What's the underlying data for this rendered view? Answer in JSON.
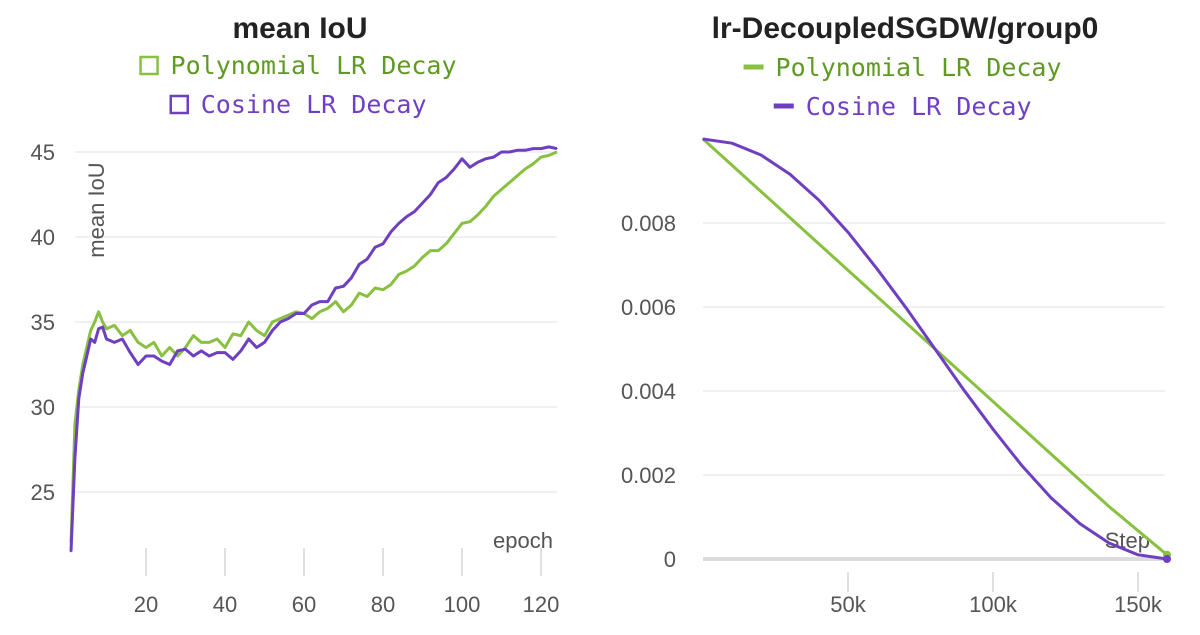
{
  "colors": {
    "polynomial": "#88c040",
    "cosine": "#6e3fc0",
    "polynomial_text": "#5f9a22",
    "cosine_text": "#7040c4"
  },
  "chart_data": [
    {
      "type": "line",
      "title": "mean IoU",
      "xlabel": "epoch",
      "ylabel": "mean IoU",
      "xlim": [
        0,
        125
      ],
      "ylim": [
        21.5,
        45.5
      ],
      "xticks": [
        "20",
        "40",
        "60",
        "80",
        "100",
        "120"
      ],
      "yticks": [
        "25",
        "30",
        "35",
        "40",
        "45"
      ],
      "grid": true,
      "legend": "top-center",
      "legend_marker": "square-outline",
      "series": [
        {
          "name": "Polynomial LR Decay",
          "x": [
            1,
            2,
            3,
            4,
            5,
            6,
            7,
            8,
            9,
            10,
            12,
            14,
            16,
            18,
            20,
            22,
            24,
            26,
            28,
            30,
            32,
            34,
            36,
            38,
            40,
            42,
            44,
            46,
            48,
            50,
            52,
            54,
            56,
            58,
            60,
            62,
            64,
            66,
            68,
            70,
            72,
            74,
            76,
            78,
            80,
            82,
            84,
            86,
            88,
            90,
            92,
            94,
            96,
            98,
            100,
            102,
            104,
            106,
            108,
            110,
            112,
            114,
            116,
            118,
            120,
            122,
            124
          ],
          "y": [
            22,
            29,
            31,
            32.5,
            33.5,
            34.5,
            35,
            35.6,
            35,
            34.6,
            34.8,
            34.2,
            34.5,
            33.8,
            33.5,
            33.8,
            33,
            33.5,
            33,
            33.5,
            34.2,
            33.8,
            33.8,
            34,
            33.5,
            34.3,
            34.2,
            35,
            34.5,
            34.2,
            35,
            35.2,
            35.4,
            35.6,
            35.5,
            35.2,
            35.6,
            35.8,
            36.2,
            35.6,
            36,
            36.7,
            36.5,
            37,
            36.9,
            37.2,
            37.8,
            38,
            38.3,
            38.8,
            39.2,
            39.2,
            39.6,
            40.2,
            40.8,
            40.9,
            41.3,
            41.8,
            42.4,
            42.8,
            43.2,
            43.6,
            44,
            44.3,
            44.7,
            44.8,
            45
          ]
        },
        {
          "name": "Cosine LR Decay",
          "x": [
            1,
            2,
            3,
            4,
            5,
            6,
            7,
            8,
            9,
            10,
            12,
            14,
            16,
            18,
            20,
            22,
            24,
            26,
            28,
            30,
            32,
            34,
            36,
            38,
            40,
            42,
            44,
            46,
            48,
            50,
            52,
            54,
            56,
            58,
            60,
            62,
            64,
            66,
            68,
            70,
            72,
            74,
            76,
            78,
            80,
            82,
            84,
            86,
            88,
            90,
            92,
            94,
            96,
            98,
            100,
            102,
            104,
            106,
            108,
            110,
            112,
            114,
            116,
            118,
            120,
            122,
            124
          ],
          "y": [
            21.5,
            27,
            30.5,
            32,
            33,
            34,
            33.8,
            34.6,
            34.7,
            34,
            33.8,
            34,
            33.2,
            32.5,
            33,
            33,
            32.7,
            32.5,
            33.3,
            33.4,
            33,
            33.3,
            33,
            33.2,
            33.2,
            32.8,
            33.3,
            34,
            33.5,
            33.8,
            34.5,
            35,
            35.2,
            35.5,
            35.5,
            36,
            36.2,
            36.2,
            37,
            37.1,
            37.6,
            38.4,
            38.7,
            39.4,
            39.6,
            40.3,
            40.8,
            41.2,
            41.5,
            42,
            42.5,
            43.2,
            43.5,
            44,
            44.6,
            44.1,
            44.4,
            44.6,
            44.7,
            45,
            45,
            45.1,
            45.1,
            45.2,
            45.2,
            45.3,
            45.2
          ]
        }
      ]
    },
    {
      "type": "line",
      "title": "lr-DecoupledSGDW/group0",
      "xlabel": "Step",
      "ylabel": "",
      "xlim": [
        0,
        160000
      ],
      "ylim": [
        0,
        0.01
      ],
      "xticks": [
        "50k",
        "100k",
        "150k"
      ],
      "yticks": [
        "0",
        "0.002",
        "0.004",
        "0.006",
        "0.008"
      ],
      "grid": true,
      "legend": "top-center",
      "legend_marker": "line",
      "series": [
        {
          "name": "Polynomial LR Decay",
          "x": [
            0,
            20000,
            40000,
            60000,
            80000,
            100000,
            120000,
            140000,
            160000
          ],
          "y": [
            0.01,
            0.00875,
            0.0075,
            0.00625,
            0.005,
            0.00375,
            0.0025,
            0.00125,
            0.0001
          ]
        },
        {
          "name": "Cosine LR Decay",
          "x": [
            0,
            10000,
            20000,
            30000,
            40000,
            50000,
            60000,
            70000,
            80000,
            90000,
            100000,
            110000,
            120000,
            130000,
            140000,
            150000,
            160000
          ],
          "y": [
            0.01,
            0.0099,
            0.00962,
            0.00916,
            0.00854,
            0.00778,
            0.00691,
            0.00598,
            0.005,
            0.00402,
            0.00309,
            0.00222,
            0.00146,
            0.00084,
            0.00038,
            0.0001,
            0
          ]
        }
      ]
    }
  ]
}
